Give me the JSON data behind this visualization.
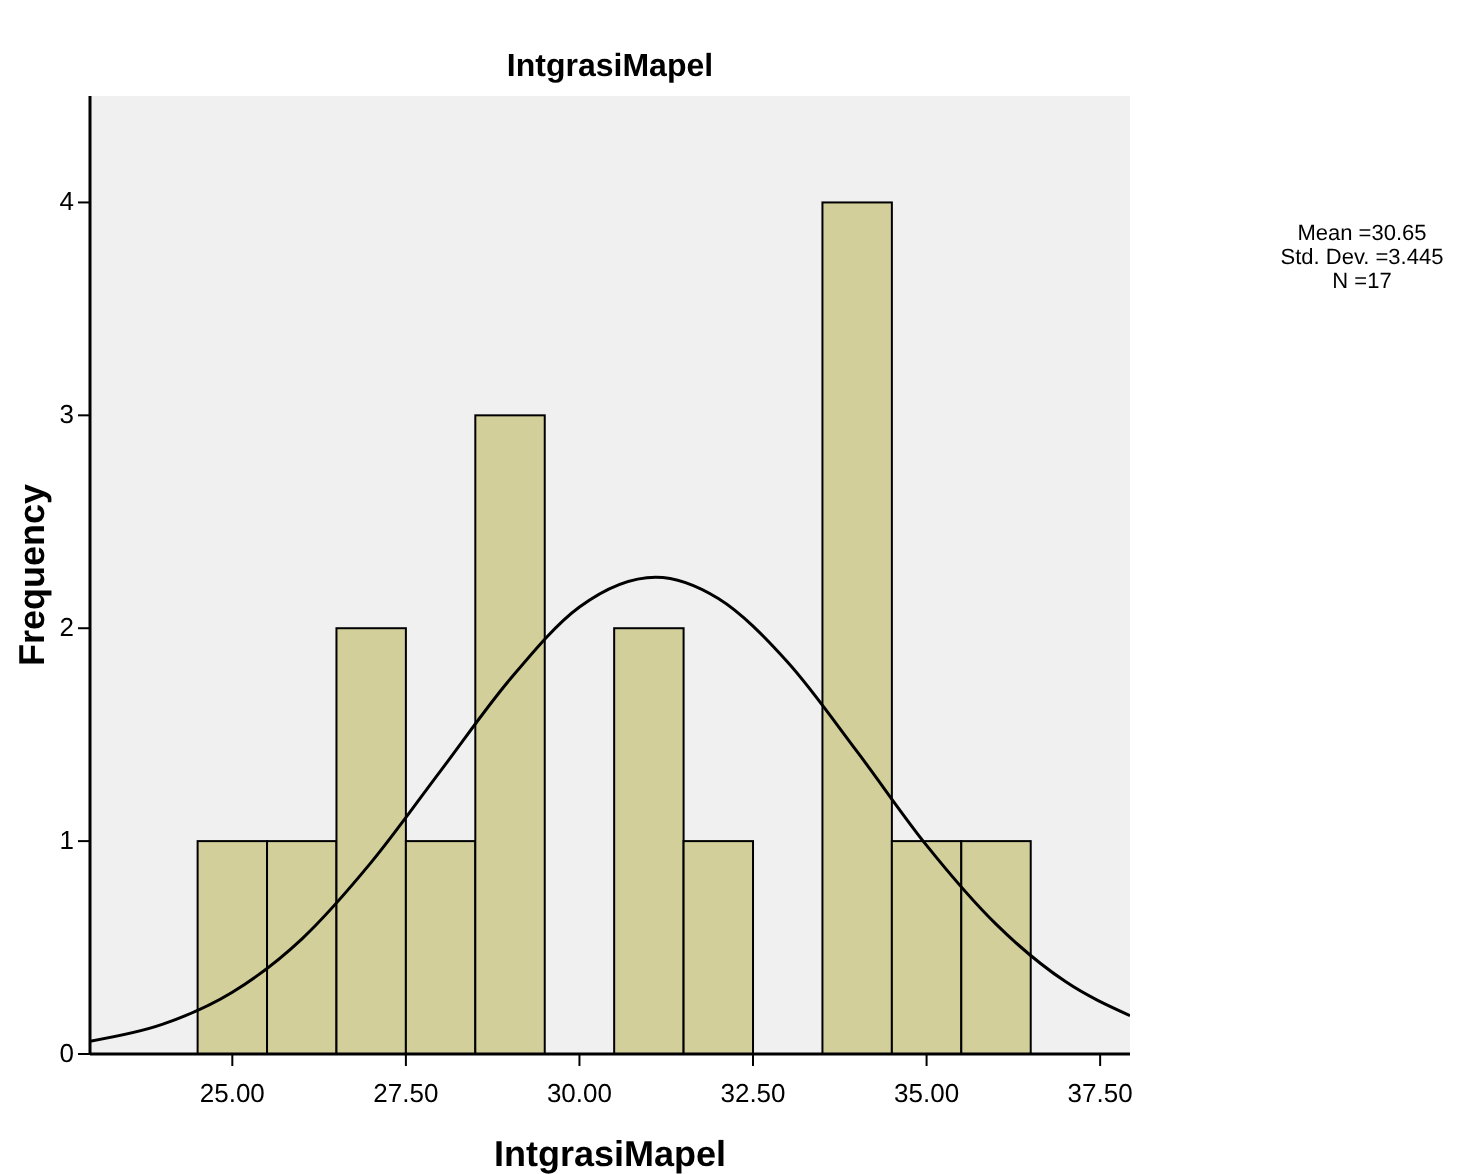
{
  "chart_data": {
    "type": "histogram",
    "title": "IntgrasiMapel",
    "xlabel": "IntgrasiMapel",
    "ylabel": "Frequency",
    "bins": [
      24.5,
      25.5,
      26.5,
      27.5,
      28.5,
      29.5,
      30.5,
      31.5,
      32.5,
      33.5,
      34.5,
      35.5,
      36.5
    ],
    "values": [
      1,
      1,
      2,
      1,
      3,
      0,
      2,
      1,
      0,
      4,
      1,
      1
    ],
    "color": "#d3cf9a",
    "series": [
      {
        "type": "line",
        "color": "#000000",
        "x": [
          22.95,
          24,
          25,
          26,
          27,
          28,
          29,
          30,
          31.1,
          32,
          33,
          34,
          35,
          36,
          37,
          37.93
        ],
        "values": [
          0.06,
          0.14,
          0.29,
          0.54,
          0.9,
          1.33,
          1.76,
          2.1,
          2.24,
          2.14,
          1.84,
          1.42,
          0.98,
          0.61,
          0.34,
          0.18
        ]
      }
    ],
    "xlim": [
      22.95,
      37.93
    ],
    "xticks": [
      {
        "value": 25,
        "label": "25.00"
      },
      {
        "value": 27.5,
        "label": "27.50"
      },
      {
        "value": 30,
        "label": "30.00"
      },
      {
        "value": 32.5,
        "label": "32.50"
      },
      {
        "value": 35,
        "label": "35.00"
      },
      {
        "value": 37.5,
        "label": "37.50"
      }
    ],
    "ylim": [
      0,
      4.5
    ],
    "yticks": [
      0,
      1,
      2,
      3,
      4
    ],
    "grid": false,
    "annotations": [
      "Mean =30.65",
      "Std. Dev. =3.445",
      "N =17"
    ]
  }
}
